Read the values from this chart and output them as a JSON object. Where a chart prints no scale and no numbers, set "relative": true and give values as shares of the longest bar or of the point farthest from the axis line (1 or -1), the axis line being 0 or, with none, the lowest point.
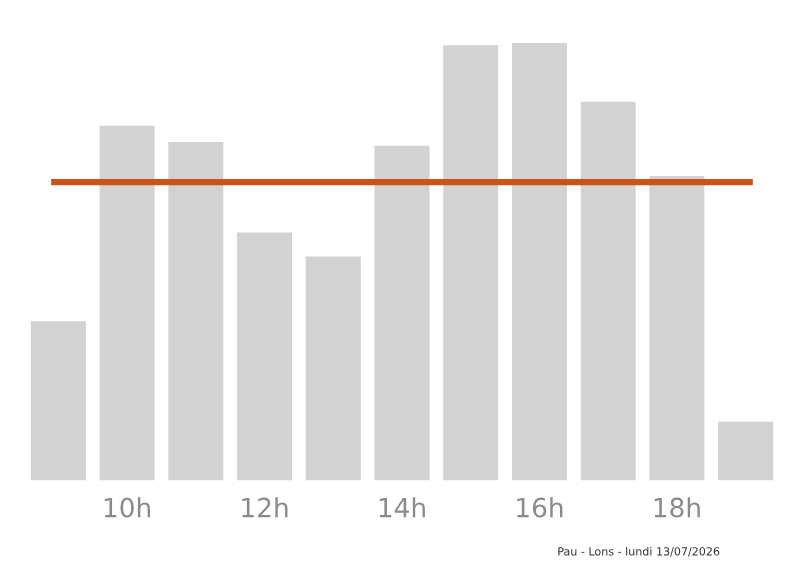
{
  "chart_data": {
    "type": "bar",
    "relative": true,
    "categories": [
      null,
      "10h",
      null,
      "12h",
      null,
      "14h",
      null,
      "16h",
      null,
      "18h",
      null
    ],
    "values": [
      0.364,
      0.811,
      0.774,
      0.567,
      0.512,
      0.765,
      0.995,
      1,
      0.866,
      0.696,
      0.134
    ],
    "color": "#d3d2d3",
    "ref_lines": [
      {
        "axis": "y",
        "value": 0.682,
        "color": "#c8541a"
      }
    ],
    "annotations": [
      "Pau - Lons - lundi 13/07/2026"
    ],
    "grid": false,
    "legend": false
  }
}
